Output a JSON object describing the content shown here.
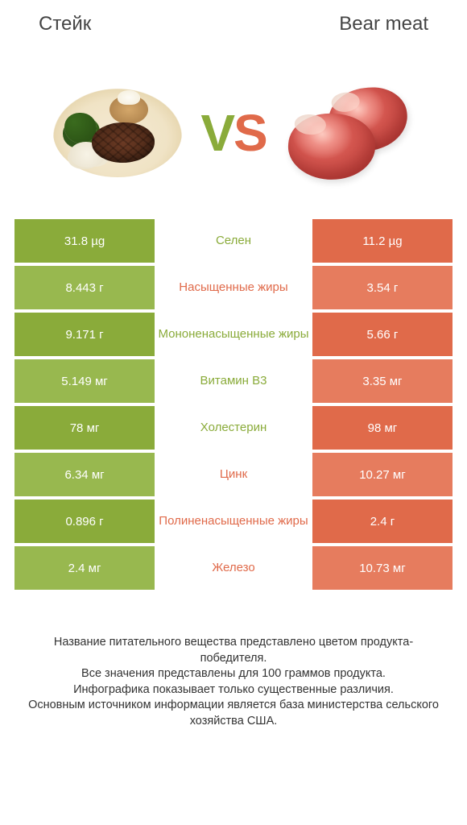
{
  "colors": {
    "green": "#8aab3a",
    "green_alt": "#98b84f",
    "red": "#e06a4a",
    "red_alt": "#e67c5e",
    "text": "#333333",
    "bg": "#ffffff"
  },
  "header": {
    "left": "Стейк",
    "right": "Bear meat"
  },
  "vs": {
    "v": "V",
    "s": "S"
  },
  "rows": [
    {
      "left": "31.8 µg",
      "center": "Селен",
      "right": "11.2 µg",
      "winner": "left"
    },
    {
      "left": "8.443 г",
      "center": "Насыщенные жиры",
      "right": "3.54 г",
      "winner": "right"
    },
    {
      "left": "9.171 г",
      "center": "Мононенасыщенные жиры",
      "right": "5.66 г",
      "winner": "left"
    },
    {
      "left": "5.149 мг",
      "center": "Витамин B3",
      "right": "3.35 мг",
      "winner": "left"
    },
    {
      "left": "78 мг",
      "center": "Холестерин",
      "right": "98 мг",
      "winner": "left"
    },
    {
      "left": "6.34 мг",
      "center": "Цинк",
      "right": "10.27 мг",
      "winner": "right"
    },
    {
      "left": "0.896 г",
      "center": "Полиненасыщенные жиры",
      "right": "2.4 г",
      "winner": "right"
    },
    {
      "left": "2.4 мг",
      "center": "Железо",
      "right": "10.73 мг",
      "winner": "right"
    }
  ],
  "footer": {
    "line1": "Название питательного вещества представлено цветом продукта-победителя.",
    "line2": "Все значения представлены для 100 граммов продукта.",
    "line3": "Инфографика показывает только существенные различия.",
    "line4": "Основным источником информации является база министерства сельского хозяйства США."
  }
}
